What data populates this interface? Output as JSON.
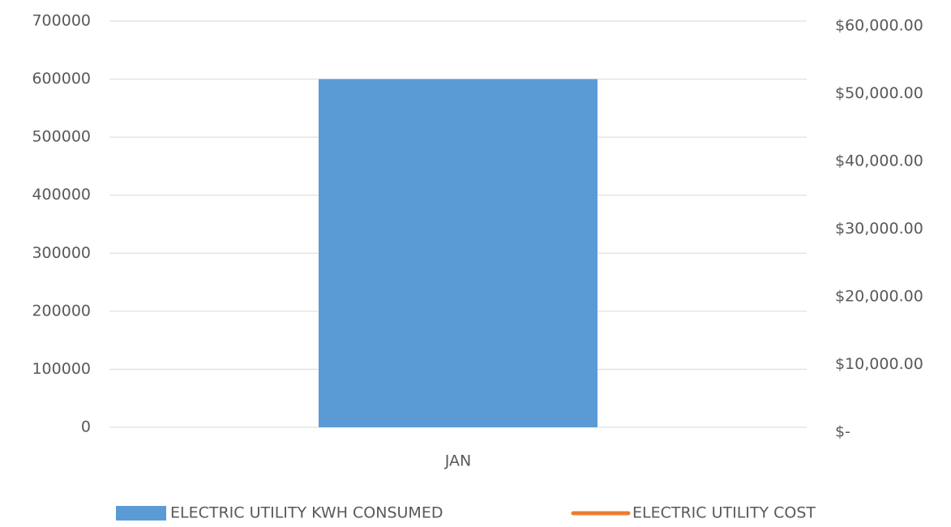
{
  "chart_data": {
    "type": "bar",
    "categories": [
      "JAN"
    ],
    "series": [
      {
        "name": "ELECTRIC UTILITY KWH CONSUMED",
        "color": "#5b9bd5",
        "values": [
          600000
        ]
      },
      {
        "name": "ELECTRIC UTILITY COST",
        "color": "#ed7d31",
        "values": [
          null
        ],
        "axis": "y2",
        "type": "line"
      }
    ],
    "ylim": [
      0,
      700000
    ],
    "yticks": [
      0,
      100000,
      200000,
      300000,
      400000,
      500000,
      600000,
      700000
    ],
    "y2lim": [
      0,
      60000
    ],
    "y2ticks": [
      {
        "value": 0,
        "label": "$-"
      },
      {
        "value": 10000,
        "label": "$10,000.00"
      },
      {
        "value": 20000,
        "label": "$20,000.00"
      },
      {
        "value": 30000,
        "label": "$30,000.00"
      },
      {
        "value": 40000,
        "label": "$40,000.00"
      },
      {
        "value": 50000,
        "label": "$50,000.00"
      },
      {
        "value": 60000,
        "label": "$60,000.00"
      }
    ],
    "grid": true,
    "legend": "bottom"
  }
}
